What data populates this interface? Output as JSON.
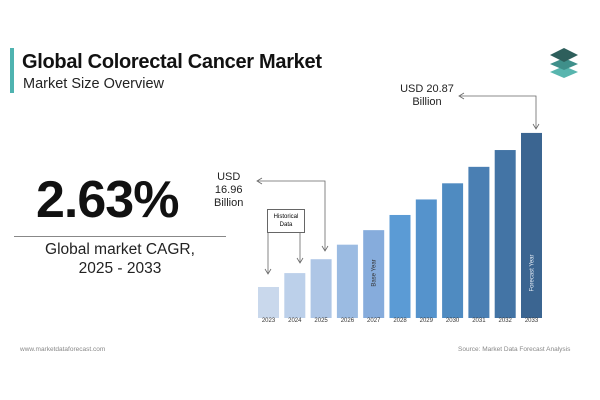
{
  "header": {
    "title": "Global Colorectal Cancer Market",
    "subtitle": "Market Size Overview"
  },
  "cagr": {
    "value": "2.63%",
    "label_line1": "Global market CAGR,",
    "label_line2": "2025 - 2033"
  },
  "callouts": {
    "start": {
      "line1": "USD",
      "line2": "16.96",
      "line3": "Billion"
    },
    "end": {
      "line1": "USD 20.87",
      "line2": "Billion"
    },
    "historical": {
      "line1": "Historical",
      "line2": "Data"
    }
  },
  "footer": {
    "website": "www.marketdataforecast.com",
    "source": "Source: Market Data Forecast Analysis"
  },
  "colors": {
    "accent": "#4fb3b0",
    "bar_light": "#c9d8ec",
    "bar_mid": "#5b9bd5",
    "bar_dark": "#3b6591",
    "logo": "#2e6b66"
  },
  "chart_data": {
    "type": "bar",
    "categories": [
      "2023",
      "2024",
      "2025",
      "2026",
      "2027",
      "2028",
      "2029",
      "2030",
      "2031",
      "2032",
      "2033"
    ],
    "values": [
      16.1,
      16.53,
      16.96,
      17.41,
      17.86,
      18.33,
      18.81,
      19.31,
      19.82,
      20.34,
      20.87
    ],
    "bar_annotations": {
      "2027": "Base Year",
      "2033": "Forecast Year"
    },
    "unit": "USD Billion",
    "title": "",
    "xlabel": "",
    "ylabel": "",
    "grid": false,
    "legend": "none"
  }
}
